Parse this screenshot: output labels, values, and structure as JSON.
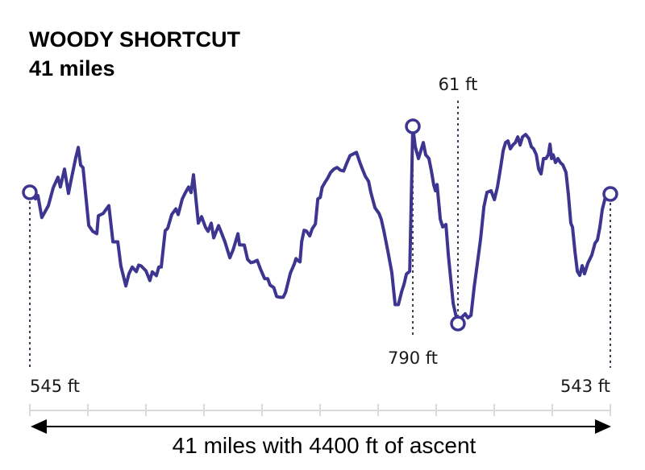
{
  "title": {
    "route_name": "WOODY SHORTCUT",
    "distance": "41 miles"
  },
  "annotations": {
    "start_elev": "545 ft",
    "end_elev": "543 ft",
    "max_elev": "790 ft",
    "min_elev": "61 ft",
    "footer": "41 miles with 4400 ft of ascent"
  },
  "colors": {
    "line": "#3d3590",
    "axis": "#d9d9d9",
    "dots": "#3d3d5c",
    "arrow": "#000000"
  },
  "chart_data": {
    "type": "line",
    "title": "WOODY SHORTCUT",
    "subtitle": "41 miles",
    "xlabel": "41 miles with 4400 ft of ascent",
    "ylabel": "",
    "xlim": [
      0,
      41
    ],
    "ylim": [
      61,
      790
    ],
    "x_ticks": [
      0,
      4.1,
      8.2,
      12.3,
      16.4,
      20.5,
      24.6,
      28.7,
      32.8,
      36.9,
      41
    ],
    "grid": false,
    "legend": null,
    "markers": [
      {
        "name": "start",
        "mile": 0,
        "elev": 545,
        "label": "545 ft"
      },
      {
        "name": "max",
        "mile": 27.05,
        "elev": 790,
        "label": "790 ft"
      },
      {
        "name": "min",
        "mile": 30.24,
        "elev": 61,
        "label": "61 ft"
      },
      {
        "name": "end",
        "mile": 41,
        "elev": 543,
        "label": "543 ft"
      }
    ],
    "series": [
      {
        "name": "elevation_ft",
        "points": [
          [
            0.0,
            545
          ],
          [
            0.4,
            522
          ],
          [
            0.57,
            534
          ],
          [
            0.85,
            453
          ],
          [
            1.31,
            497
          ],
          [
            1.65,
            563
          ],
          [
            1.99,
            602
          ],
          [
            2.16,
            566
          ],
          [
            2.45,
            632
          ],
          [
            2.73,
            542
          ],
          [
            2.9,
            587
          ],
          [
            3.25,
            676
          ],
          [
            3.42,
            712
          ],
          [
            3.59,
            647
          ],
          [
            3.76,
            637
          ],
          [
            4.16,
            423
          ],
          [
            4.44,
            402
          ],
          [
            4.73,
            393
          ],
          [
            4.84,
            459
          ],
          [
            5.18,
            468
          ],
          [
            5.58,
            497
          ],
          [
            5.87,
            363
          ],
          [
            6.21,
            363
          ],
          [
            6.43,
            274
          ],
          [
            6.78,
            200
          ],
          [
            7.0,
            245
          ],
          [
            7.23,
            270
          ],
          [
            7.52,
            253
          ],
          [
            7.69,
            277
          ],
          [
            7.86,
            274
          ],
          [
            8.2,
            256
          ],
          [
            8.48,
            220
          ],
          [
            8.65,
            252
          ],
          [
            8.94,
            238
          ],
          [
            9.11,
            270
          ],
          [
            9.28,
            270
          ],
          [
            9.56,
            404
          ],
          [
            9.74,
            413
          ],
          [
            10.02,
            464
          ],
          [
            10.31,
            485
          ],
          [
            10.48,
            464
          ],
          [
            10.76,
            521
          ],
          [
            10.99,
            545
          ],
          [
            11.22,
            566
          ],
          [
            11.39,
            545
          ],
          [
            11.56,
            611
          ],
          [
            11.9,
            432
          ],
          [
            12.13,
            456
          ],
          [
            12.41,
            417
          ],
          [
            12.59,
            402
          ],
          [
            12.81,
            432
          ],
          [
            12.99,
            378
          ],
          [
            13.33,
            423
          ],
          [
            13.56,
            393
          ],
          [
            13.78,
            363
          ],
          [
            14.13,
            304
          ],
          [
            14.36,
            334
          ],
          [
            14.7,
            393
          ],
          [
            14.81,
            352
          ],
          [
            15.15,
            351
          ],
          [
            15.38,
            298
          ],
          [
            15.61,
            286
          ],
          [
            15.83,
            289
          ],
          [
            16.06,
            295
          ],
          [
            16.29,
            262
          ],
          [
            16.58,
            227
          ],
          [
            16.8,
            227
          ],
          [
            16.97,
            203
          ],
          [
            17.23,
            194
          ],
          [
            17.43,
            161
          ],
          [
            17.66,
            158
          ],
          [
            17.83,
            158
          ],
          [
            17.89,
            158
          ],
          [
            18.06,
            176
          ],
          [
            18.4,
            247
          ],
          [
            18.68,
            281
          ],
          [
            18.8,
            301
          ],
          [
            18.91,
            295
          ],
          [
            19.08,
            289
          ],
          [
            19.2,
            364
          ],
          [
            19.37,
            406
          ],
          [
            19.54,
            403
          ],
          [
            19.77,
            385
          ],
          [
            19.94,
            411
          ],
          [
            20.17,
            429
          ],
          [
            20.34,
            522
          ],
          [
            20.51,
            527
          ],
          [
            20.65,
            565
          ],
          [
            20.85,
            583
          ],
          [
            21.02,
            597
          ],
          [
            21.25,
            620
          ],
          [
            21.48,
            632
          ],
          [
            21.71,
            638
          ],
          [
            21.93,
            628
          ],
          [
            22.16,
            625
          ],
          [
            22.39,
            655
          ],
          [
            22.62,
            682
          ],
          [
            22.84,
            688
          ],
          [
            23.07,
            694
          ],
          [
            23.3,
            658
          ],
          [
            23.47,
            634
          ],
          [
            23.7,
            605
          ],
          [
            23.92,
            587
          ],
          [
            24.09,
            545
          ],
          [
            24.38,
            489
          ],
          [
            24.66,
            468
          ],
          [
            24.83,
            445
          ],
          [
            25.01,
            402
          ],
          [
            25.29,
            328
          ],
          [
            25.57,
            249
          ],
          [
            25.8,
            131
          ],
          [
            26.03,
            131
          ],
          [
            26.26,
            179
          ],
          [
            26.43,
            206
          ],
          [
            26.6,
            244
          ],
          [
            26.83,
            254
          ],
          [
            27.05,
            790
          ],
          [
            27.22,
            715
          ],
          [
            27.45,
            671
          ],
          [
            27.62,
            700
          ],
          [
            27.79,
            730
          ],
          [
            27.96,
            685
          ],
          [
            28.19,
            671
          ],
          [
            28.36,
            626
          ],
          [
            28.53,
            573
          ],
          [
            28.65,
            552
          ],
          [
            28.76,
            575
          ],
          [
            28.99,
            447
          ],
          [
            29.16,
            418
          ],
          [
            29.39,
            427
          ],
          [
            29.56,
            314
          ],
          [
            29.73,
            224
          ],
          [
            29.9,
            135
          ],
          [
            30.13,
            82
          ],
          [
            30.24,
            61
          ],
          [
            30.47,
            82
          ],
          [
            30.75,
            97
          ],
          [
            30.93,
            82
          ],
          [
            31.16,
            91
          ],
          [
            31.38,
            195
          ],
          [
            31.61,
            284
          ],
          [
            31.84,
            374
          ],
          [
            32.07,
            493
          ],
          [
            32.29,
            546
          ],
          [
            32.58,
            552
          ],
          [
            32.81,
            519
          ],
          [
            33.03,
            566
          ],
          [
            33.26,
            641
          ],
          [
            33.43,
            700
          ],
          [
            33.6,
            730
          ],
          [
            33.77,
            736
          ],
          [
            33.94,
            707
          ],
          [
            34.11,
            721
          ],
          [
            34.29,
            730
          ],
          [
            34.46,
            751
          ],
          [
            34.63,
            721
          ],
          [
            34.8,
            751
          ],
          [
            35.02,
            760
          ],
          [
            35.25,
            745
          ],
          [
            35.42,
            715
          ],
          [
            35.59,
            706
          ],
          [
            35.77,
            685
          ],
          [
            35.94,
            632
          ],
          [
            36.11,
            614
          ],
          [
            36.28,
            671
          ],
          [
            36.45,
            671
          ],
          [
            36.62,
            685
          ],
          [
            36.74,
            724
          ],
          [
            36.85,
            671
          ],
          [
            36.96,
            685
          ],
          [
            37.13,
            656
          ],
          [
            37.3,
            671
          ],
          [
            37.47,
            656
          ],
          [
            37.65,
            647
          ],
          [
            37.87,
            620
          ],
          [
            38.04,
            537
          ],
          [
            38.21,
            432
          ],
          [
            38.33,
            417
          ],
          [
            38.5,
            328
          ],
          [
            38.67,
            254
          ],
          [
            38.84,
            239
          ],
          [
            39.01,
            275
          ],
          [
            39.18,
            245
          ],
          [
            39.41,
            284
          ],
          [
            39.69,
            314
          ],
          [
            39.92,
            358
          ],
          [
            40.09,
            370
          ],
          [
            40.26,
            417
          ],
          [
            40.43,
            482
          ],
          [
            40.66,
            530
          ],
          [
            41.0,
            543
          ]
        ]
      }
    ]
  }
}
